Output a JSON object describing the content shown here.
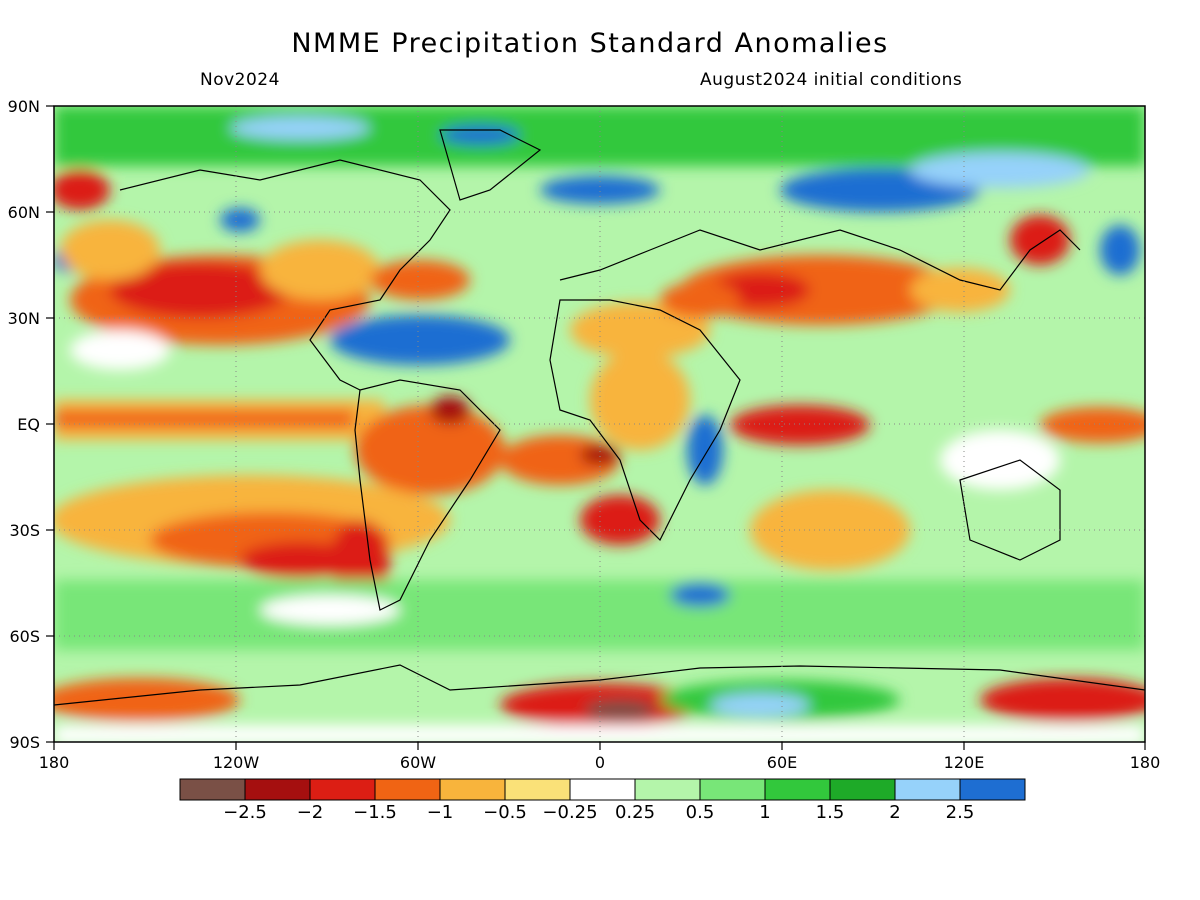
{
  "header": {
    "title": "NMME Precipitation Standard Anomalies",
    "valid_month": "Nov2024",
    "init_conditions": "August2024 initial conditions"
  },
  "map": {
    "lat_labels": [
      "90N",
      "60N",
      "30N",
      "EQ",
      "30S",
      "60S",
      "90S"
    ],
    "lon_labels": [
      "180",
      "120W",
      "60W",
      "0",
      "60E",
      "120E",
      "180"
    ],
    "graticule": "dotted"
  },
  "colorbar": {
    "colors": [
      "#7a5046",
      "#a50f0f",
      "#dc1e14",
      "#f06414",
      "#f8b43c",
      "#fae178",
      "#ffffff",
      "#b4f5aa",
      "#78e678",
      "#32c83c",
      "#1eaa28",
      "#96d2fa",
      "#1e6ed2"
    ],
    "labels": [
      "−2.5",
      "−2",
      "−1.5",
      "−1",
      "−0.5",
      "−0.25",
      "0.25",
      "0.5",
      "1",
      "1.5",
      "2",
      "2.5"
    ]
  }
}
